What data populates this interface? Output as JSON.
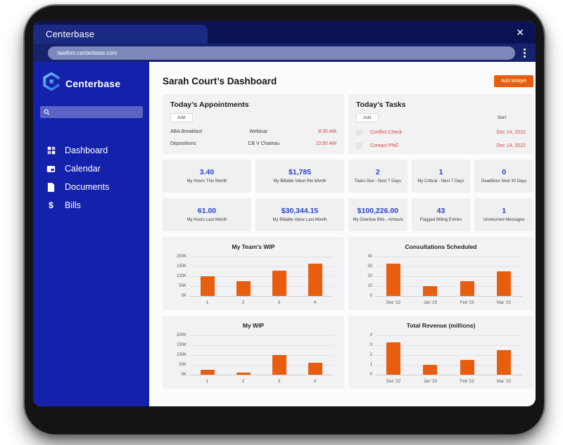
{
  "browser": {
    "tab_title": "Centerbase",
    "close_glyph": "✕",
    "url": "lawfirm.centerbase.com"
  },
  "sidebar": {
    "brand": "Centerbase",
    "search_placeholder": "",
    "items": [
      {
        "label": "Dashboard",
        "icon": "dashboard-icon"
      },
      {
        "label": "Calendar",
        "icon": "calendar-icon"
      },
      {
        "label": "Documents",
        "icon": "documents-icon"
      },
      {
        "label": "Bills",
        "icon": "bills-icon"
      }
    ]
  },
  "header": {
    "title": "Sarah Court’s Dashboard",
    "add_widget_label": "Add Widget"
  },
  "appointments": {
    "title": "Today’s Appointments",
    "add_label": "Add",
    "rows": [
      {
        "name": "ABA Breakfast",
        "detail": "Webinar",
        "time": "8:30 AM"
      },
      {
        "name": "Depositions",
        "detail": "CB V Chateau",
        "time": "10:30 AM"
      }
    ]
  },
  "tasks": {
    "title": "Today’s Tasks",
    "add_label": "Add",
    "sort_label": "Sort",
    "rows": [
      {
        "name": "Conflict Check",
        "date": "Dec 14, 2022"
      },
      {
        "name": "Contact PNC",
        "date": "Dec 14, 2022"
      }
    ]
  },
  "stats": {
    "row1_left": [
      {
        "value": "3.40",
        "label": "My Hours This Month"
      },
      {
        "value": "$1,785",
        "label": "My Billable Value this Month"
      }
    ],
    "row1_right": [
      {
        "value": "2",
        "label": "Tasks Due - Next 7 Days"
      },
      {
        "value": "1",
        "label": "My Critical - Next 7 Days"
      },
      {
        "value": "0",
        "label": "Deadlines Next 30 Days"
      }
    ],
    "row2_left": [
      {
        "value": "61.00",
        "label": "My Hours Last Month"
      },
      {
        "value": "$30,344.15",
        "label": "My Billable Value Last Month"
      }
    ],
    "row2_right": [
      {
        "value": "$100,226.00",
        "label": "My Overdue Bills - Amount"
      },
      {
        "value": "43",
        "label": "Flagged Billing Entries"
      },
      {
        "value": "1",
        "label": "Unreturned Messages"
      }
    ]
  },
  "chart_data": [
    {
      "type": "bar",
      "title": "My Team's WIP",
      "categories": [
        "1",
        "2",
        "3",
        "4"
      ],
      "values": [
        100000,
        75000,
        130000,
        165000
      ],
      "ylim": [
        0,
        200000
      ],
      "yticks": [
        "200K",
        "150K",
        "100K",
        "50K",
        "0K"
      ],
      "xlabel": "",
      "ylabel": "",
      "grid": true,
      "legend": "none"
    },
    {
      "type": "bar",
      "title": "Consultations Scheduled",
      "categories": [
        "Dec '22",
        "Jan '23",
        "Feb '23",
        "Mar '23"
      ],
      "values": [
        33,
        10,
        15,
        25
      ],
      "ylim": [
        0,
        40
      ],
      "yticks": [
        "40",
        "30",
        "20",
        "10",
        "0"
      ],
      "xlabel": "",
      "ylabel": "",
      "grid": true,
      "legend": "none"
    },
    {
      "type": "bar",
      "title": "My WIP",
      "categories": [
        "1",
        "2",
        "3",
        "4"
      ],
      "values": [
        25000,
        12000,
        100000,
        60000
      ],
      "ylim": [
        0,
        200000
      ],
      "yticks": [
        "200K",
        "150K",
        "100K",
        "50K",
        "0K"
      ],
      "xlabel": "",
      "ylabel": "",
      "grid": true,
      "legend": "none"
    },
    {
      "type": "bar",
      "title": "Total Revenue (millions)",
      "categories": [
        "Dec '22",
        "Jan '23",
        "Feb '23",
        "Mar '23"
      ],
      "values": [
        3.3,
        1.0,
        1.5,
        2.5
      ],
      "ylim": [
        0,
        4
      ],
      "yticks": [
        "4",
        "3",
        "2",
        "1",
        "0"
      ],
      "xlabel": "",
      "ylabel": "",
      "grid": true,
      "legend": "none"
    }
  ],
  "colors": {
    "accent_orange": "#e85d0e",
    "sidebar_blue": "#1421ab",
    "chrome_navy": "#0a1254",
    "stat_blue": "#2642c8",
    "alert_red": "#d84343"
  }
}
